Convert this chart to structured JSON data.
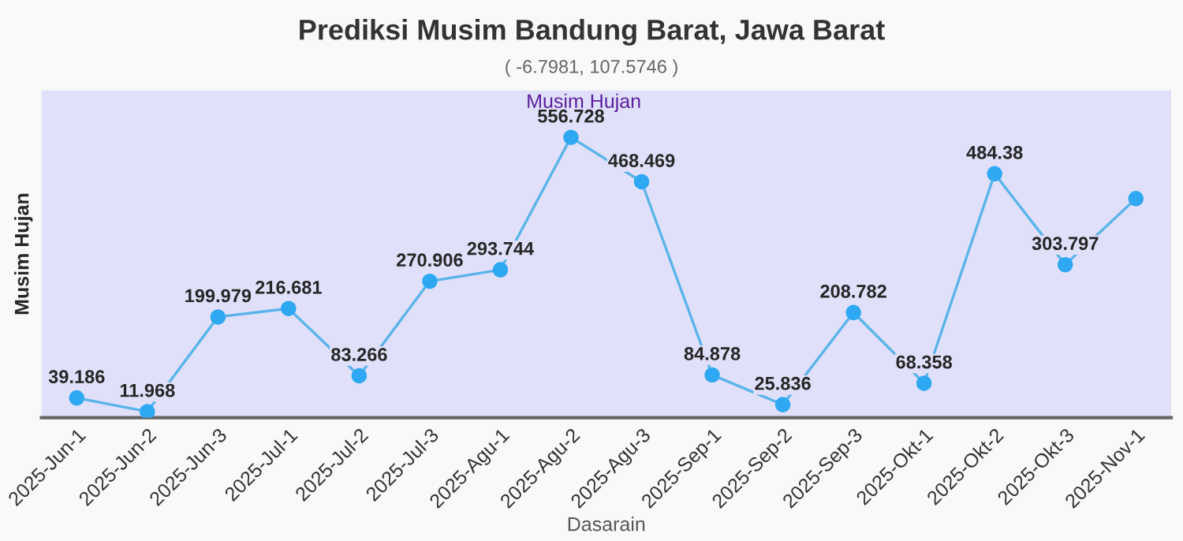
{
  "chart_data": {
    "type": "line",
    "title": "Prediksi Musim Bandung Barat, Jawa Barat",
    "subtitle": "( -6.7981, 107.5746 )",
    "xlabel": "Dasarain",
    "ylabel": "Musim Hujan",
    "categories": [
      "2025-Jun-1",
      "2025-Jun-2",
      "2025-Jun-3",
      "2025-Jul-1",
      "2025-Jul-2",
      "2025-Jul-3",
      "2025-Agu-1",
      "2025-Agu-2",
      "2025-Agu-3",
      "2025-Sep-1",
      "2025-Sep-2",
      "2025-Sep-3",
      "2025-Okt-1",
      "2025-Okt-2",
      "2025-Okt-3",
      "2025-Nov-1"
    ],
    "series": [
      {
        "color": "#5ab4ea",
        "values": [
          39.186,
          11.968,
          199.979,
          216.681,
          83.266,
          270.906,
          293.744,
          556.728,
          468.469,
          84.878,
          25.836,
          208.782,
          68.358,
          484.38,
          303.797,
          435
        ],
        "value_labels": [
          "39.186",
          "11.968",
          "199.979",
          "216.681",
          "83.266",
          "270.906",
          "293.744",
          "556.728",
          "468.469",
          "84.878",
          "25.836",
          "208.782",
          "68.358",
          "484.38",
          "303.797",
          null
        ]
      }
    ],
    "ylim": [
      0,
      650
    ],
    "tick_labels": "x",
    "marker": "circle",
    "line_style": "solid",
    "grid": false,
    "legend": false,
    "bands": [
      {
        "axis": "x",
        "from": "2025-Jun-1",
        "to": "2025-Nov-1",
        "label": "Musim Hujan",
        "color": "#e0e0fa"
      }
    ]
  }
}
